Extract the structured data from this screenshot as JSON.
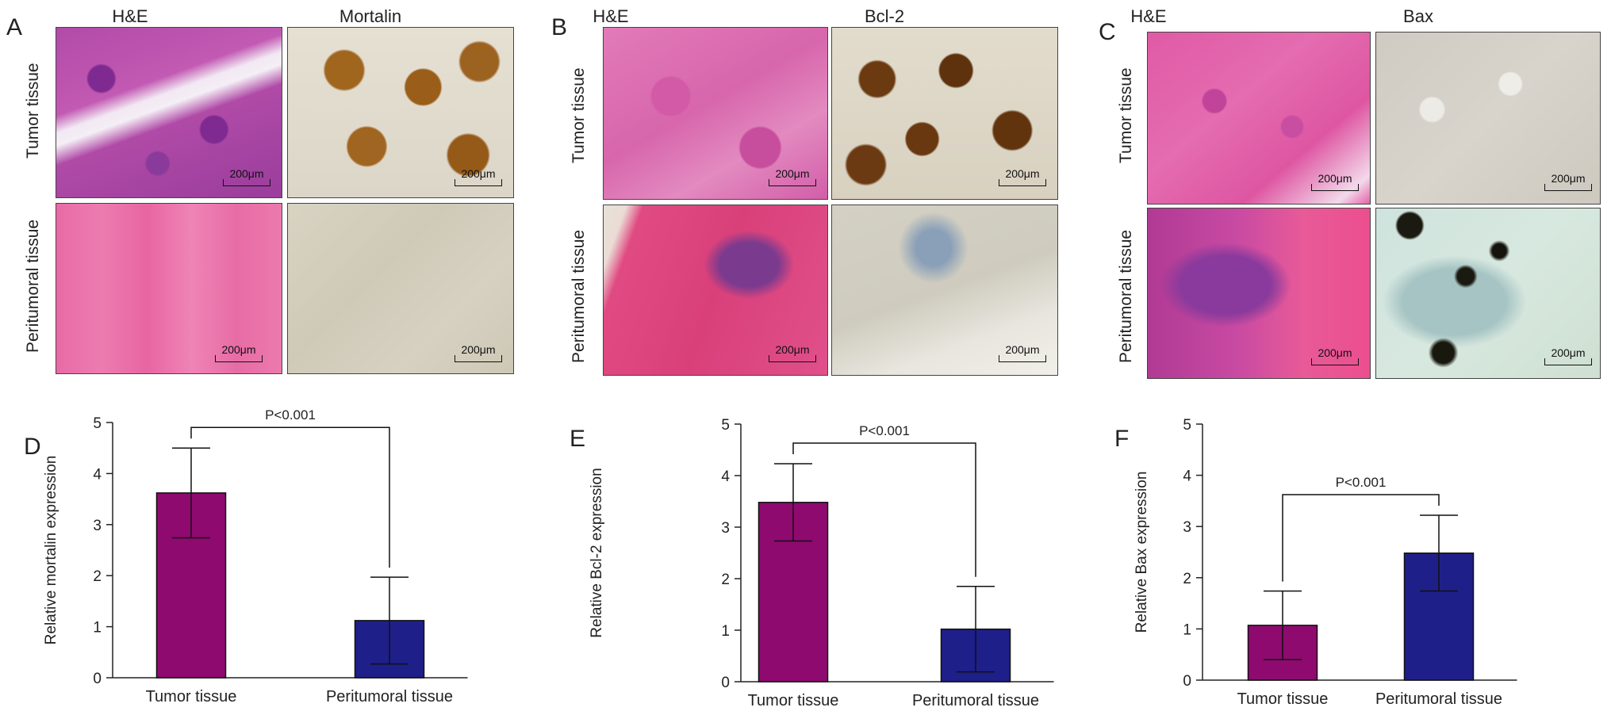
{
  "panels_top": [
    {
      "letter": "A",
      "headers": [
        "H&E",
        "Mortalin"
      ],
      "rows": [
        "Tumor tissue",
        "Peritumoral tissue"
      ],
      "scale": "200μm"
    },
    {
      "letter": "B",
      "headers": [
        "H&E",
        "Bcl-2"
      ],
      "rows": [
        "Tumor tissue",
        "Peritumoral tissue"
      ],
      "scale": "200μm"
    },
    {
      "letter": "C",
      "headers": [
        "H&E",
        "Bax"
      ],
      "rows": [
        "Tumor tissue",
        "Peritumoral tissue"
      ],
      "scale": "200μm"
    }
  ],
  "colors": {
    "tumor": "#8e0a6f",
    "peritumoral": "#1f1f8a",
    "he_tumor": "#b23fa8",
    "he_peri": "#e05a9a",
    "ihc_brown": "#8a5a1a",
    "ihc_bg": "#d9d6cc"
  },
  "chart_data": [
    {
      "letter": "D",
      "type": "bar",
      "categories": [
        "Tumor tissue",
        "Peritumoral tissue"
      ],
      "values": [
        3.62,
        1.12
      ],
      "errors": [
        0.88,
        0.85
      ],
      "ylabel": "Relative mortalin expression",
      "ylim": [
        0,
        5
      ],
      "yticks": [
        0,
        1,
        2,
        3,
        4,
        5
      ],
      "annotation": "P<0.001"
    },
    {
      "letter": "E",
      "type": "bar",
      "categories": [
        "Tumor tissue",
        "Peritumoral tissue"
      ],
      "values": [
        3.48,
        1.02
      ],
      "errors": [
        0.75,
        0.83
      ],
      "ylabel": "Relative Bcl-2 expression",
      "ylim": [
        0,
        5
      ],
      "yticks": [
        0,
        1,
        2,
        3,
        4,
        5
      ],
      "annotation": "P<0.001"
    },
    {
      "letter": "F",
      "type": "bar",
      "categories": [
        "Tumor tissue",
        "Peritumoral tissue"
      ],
      "values": [
        1.07,
        2.48
      ],
      "errors": [
        0.67,
        0.74
      ],
      "ylabel": "Relative Bax expression",
      "ylim": [
        0,
        5
      ],
      "yticks": [
        0,
        1,
        2,
        3,
        4,
        5
      ],
      "annotation": "P<0.001"
    }
  ]
}
